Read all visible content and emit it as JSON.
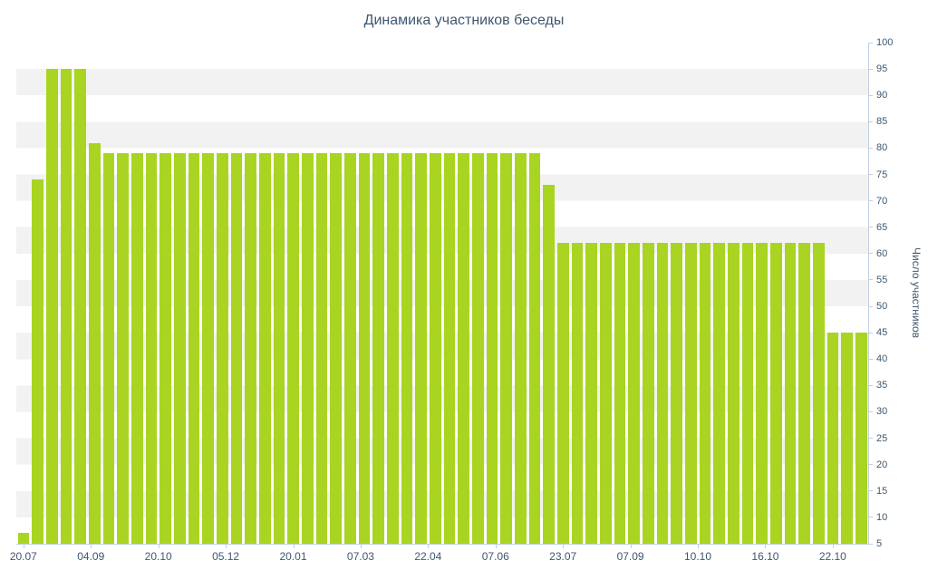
{
  "chart_data": {
    "type": "bar",
    "title": "Динамика участников беседы",
    "xlabel": "",
    "ylabel": "Число участников",
    "ylim": [
      5,
      100
    ],
    "ytick_step": 5,
    "grid": "horizontal-bands",
    "legend": "none",
    "x_tick_labels": [
      "20.07",
      "04.09",
      "20.10",
      "05.12",
      "20.01",
      "07.03",
      "22.04",
      "07.06",
      "23.07",
      "07.09",
      "10.10",
      "16.10",
      "22.10"
    ],
    "values": [
      7,
      74,
      95,
      95,
      95,
      81,
      79,
      79,
      79,
      79,
      79,
      79,
      79,
      79,
      79,
      79,
      79,
      79,
      79,
      79,
      79,
      79,
      79,
      79,
      79,
      79,
      79,
      79,
      79,
      79,
      79,
      79,
      79,
      79,
      79,
      79,
      79,
      73,
      62,
      62,
      62,
      62,
      62,
      62,
      62,
      62,
      62,
      62,
      62,
      62,
      62,
      62,
      62,
      62,
      62,
      62,
      62,
      45,
      45,
      45
    ],
    "colors": {
      "bar": "#a9d422",
      "band": "#f2f2f2",
      "axis": "#c0cfe0",
      "text": "#3e576f"
    }
  }
}
